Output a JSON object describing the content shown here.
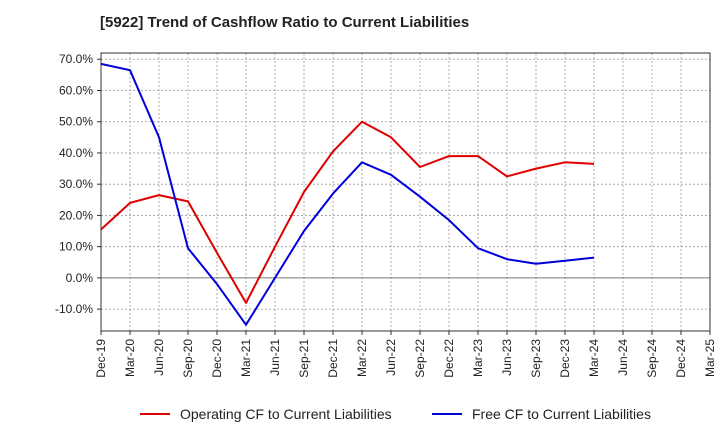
{
  "chart_data": {
    "type": "line",
    "title": "[5922]  Trend of Cashflow Ratio to Current Liabilities",
    "xlabel": "",
    "ylabel": "",
    "categories": [
      "Dec-19",
      "Mar-20",
      "Jun-20",
      "Sep-20",
      "Dec-20",
      "Mar-21",
      "Jun-21",
      "Sep-21",
      "Dec-21",
      "Mar-22",
      "Jun-22",
      "Sep-22",
      "Dec-22",
      "Mar-23",
      "Jun-23",
      "Sep-23",
      "Dec-23",
      "Mar-24",
      "Jun-24",
      "Sep-24",
      "Dec-24",
      "Mar-25"
    ],
    "ylim": [
      -17,
      72
    ],
    "yticks": [
      -10,
      0,
      10,
      20,
      30,
      40,
      50,
      60,
      70
    ],
    "ytick_labels": [
      "-10.0%",
      "0.0%",
      "10.0%",
      "20.0%",
      "30.0%",
      "40.0%",
      "50.0%",
      "60.0%",
      "70.0%"
    ],
    "grid": true,
    "legend_position": "bottom",
    "series": [
      {
        "name": "Operating CF to Current Liabilities",
        "color": "#e00000",
        "x": [
          "Dec-19",
          "Mar-20",
          "Jun-20",
          "Sep-20",
          "Dec-20",
          "Mar-21",
          "Jun-21",
          "Sep-21",
          "Dec-21",
          "Mar-22",
          "Jun-22",
          "Sep-22",
          "Dec-22",
          "Mar-23",
          "Jun-23",
          "Sep-23",
          "Dec-23",
          "Mar-24"
        ],
        "values": [
          15.5,
          24,
          26.5,
          24.5,
          8,
          -8,
          10,
          27.5,
          40.5,
          50,
          45,
          35.5,
          39,
          39,
          32.5,
          35,
          37,
          36.5
        ]
      },
      {
        "name": "Free CF to Current Liabilities",
        "color": "#0000dd",
        "x": [
          "Dec-19",
          "Mar-20",
          "Jun-20",
          "Sep-20",
          "Dec-20",
          "Mar-21",
          "Jun-21",
          "Sep-21",
          "Dec-21",
          "Mar-22",
          "Jun-22",
          "Sep-22",
          "Dec-22",
          "Mar-23",
          "Jun-23",
          "Sep-23",
          "Dec-23",
          "Mar-24"
        ],
        "values": [
          68.5,
          66.5,
          45,
          9.5,
          -2,
          -15,
          0,
          15,
          27,
          37,
          33,
          26,
          18.5,
          9.5,
          6,
          4.5,
          5.5,
          6.5
        ]
      }
    ]
  }
}
